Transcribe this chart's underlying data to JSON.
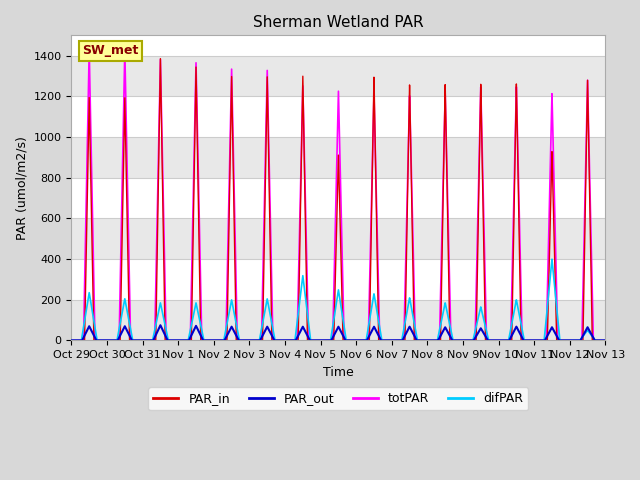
{
  "title": "Sherman Wetland PAR",
  "ylabel": "PAR (umol/m2/s)",
  "xlabel": "Time",
  "ylim": [
    0,
    1500
  ],
  "yticks": [
    0,
    200,
    400,
    600,
    800,
    1000,
    1200,
    1400
  ],
  "xtick_labels": [
    "Oct 29",
    "Oct 30",
    "Oct 31",
    "Nov 1",
    "Nov 2",
    "Nov 3",
    "Nov 4",
    "Nov 5",
    "Nov 6",
    "Nov 7",
    "Nov 8",
    "Nov 9",
    "Nov 10",
    "Nov 11",
    "Nov 12",
    "Nov 13"
  ],
  "xtick_positions": [
    0,
    1,
    2,
    3,
    4,
    5,
    6,
    7,
    8,
    9,
    10,
    11,
    12,
    13,
    14,
    15
  ],
  "legend_label": "SW_met",
  "colors": {
    "PAR_in": "#dd0000",
    "PAR_out": "#0000cc",
    "totPAR": "#ff00ff",
    "difPAR": "#00ccff"
  },
  "fig_bg": "#d8d8d8",
  "plot_bg": "#ffffff",
  "grid_color": "#cccccc",
  "peaks_PAR_in": [
    1195,
    1195,
    1390,
    1350,
    1305,
    1305,
    1310,
    920,
    1305,
    1265,
    1265,
    1265,
    1265,
    930,
    1280
  ],
  "peaks_totPAR": [
    1430,
    1430,
    1385,
    1370,
    1340,
    1335,
    1260,
    1235,
    1210,
    1210,
    1215,
    1250,
    1250,
    1215,
    1280
  ],
  "peaks_difPAR": [
    235,
    205,
    185,
    185,
    200,
    205,
    320,
    250,
    230,
    210,
    185,
    165,
    200,
    400,
    50
  ],
  "peaks_PAR_out": [
    70,
    70,
    75,
    72,
    68,
    68,
    68,
    68,
    68,
    68,
    65,
    60,
    68,
    65,
    65
  ],
  "peak_centers": [
    0.5,
    1.5,
    2.5,
    3.5,
    4.5,
    5.5,
    6.5,
    7.5,
    8.5,
    9.5,
    10.5,
    11.5,
    12.5,
    13.5,
    14.5
  ],
  "hw_PAR_in": 0.13,
  "hw_totPAR": 0.16,
  "hw_difPAR": 0.22,
  "hw_PAR_out": 0.2,
  "title_fontsize": 11,
  "label_fontsize": 9,
  "tick_fontsize": 8,
  "legend_fontsize": 9
}
